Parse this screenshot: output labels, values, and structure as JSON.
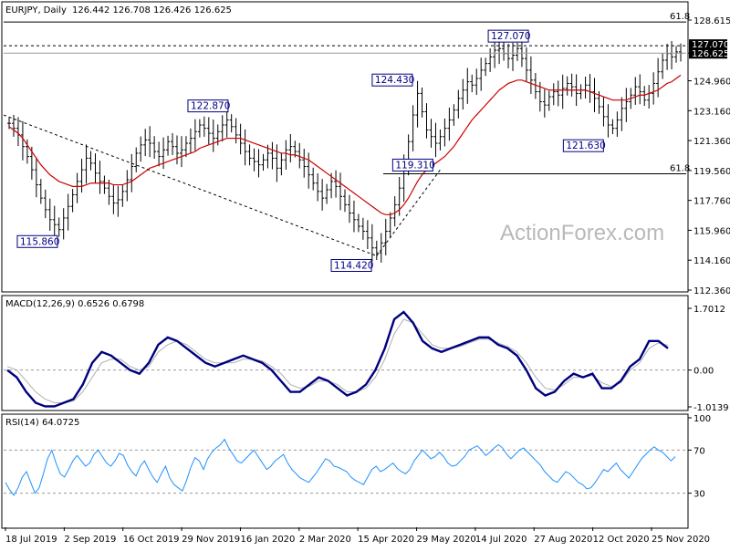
{
  "header": {
    "symbol": "EURJPY",
    "timeframe": "Daily",
    "ohlc": "126.442 126.708 126.426 126.625"
  },
  "watermark": "ActionForex.com",
  "colors": {
    "price_bars": "#000000",
    "ma": "#cc0000",
    "macd_main": "#000080",
    "macd_signal": "#b0b0b0",
    "rsi": "#1e90ff",
    "label": "#000080"
  },
  "chart_data": [
    {
      "type": "line",
      "name_text": "EURJPY, Daily",
      "y_ticks": [
        "128.615",
        "126.625",
        "124.960",
        "123.160",
        "121.360",
        "119.560",
        "117.760",
        "115.960",
        "114.160",
        "112.360"
      ],
      "ylim": [
        112.36,
        128.615
      ],
      "x_ticks": [
        "18 Jul 2019",
        "2 Sep 2019",
        "16 Oct 2019",
        "29 Nov 2019",
        "16 Jan 2020",
        "2 Mar 2020",
        "15 Apr 2020",
        "29 May 2020",
        "14 Jul 2020",
        "27 Aug 2020",
        "12 Oct 2020",
        "25 Nov 2020"
      ],
      "last_price": "126.625",
      "resistance_label": "127.070",
      "fib_levels": [
        {
          "label": "61.8",
          "value": 128.5
        },
        {
          "label": "61.8",
          "value": 119.36
        }
      ],
      "dotted_level": 127.07,
      "callouts": [
        {
          "text": "115.860",
          "value": 115.86
        },
        {
          "text": "122.870",
          "value": 122.87
        },
        {
          "text": "114.420",
          "value": 114.42
        },
        {
          "text": "124.430",
          "value": 124.43
        },
        {
          "text": "119.310",
          "value": 119.31
        },
        {
          "text": "127.070",
          "value": 127.07
        },
        {
          "text": "121.630",
          "value": 121.63
        }
      ],
      "close_series": [
        122.4,
        122.1,
        121.7,
        121.0,
        120.4,
        119.6,
        118.7,
        117.9,
        117.2,
        116.6,
        116.3,
        116.0,
        116.7,
        117.4,
        118.1,
        118.9,
        119.6,
        120.3,
        120.0,
        119.4,
        118.9,
        118.5,
        118.0,
        117.6,
        117.8,
        118.3,
        119.0,
        119.8,
        120.6,
        121.1,
        121.4,
        121.2,
        120.7,
        120.4,
        120.8,
        121.3,
        121.0,
        120.6,
        120.8,
        121.2,
        121.5,
        121.9,
        122.3,
        122.1,
        121.8,
        121.5,
        121.9,
        122.3,
        122.6,
        122.2,
        121.7,
        121.2,
        120.7,
        120.3,
        120.1,
        119.9,
        120.2,
        120.6,
        120.3,
        119.7,
        120.2,
        120.8,
        121.0,
        120.7,
        120.2,
        119.8,
        119.3,
        118.8,
        118.3,
        117.9,
        118.4,
        118.9,
        118.6,
        118.0,
        117.5,
        117.0,
        116.6,
        116.2,
        115.9,
        115.5,
        114.9,
        114.6,
        115.2,
        115.9,
        116.7,
        117.5,
        118.5,
        119.7,
        121.3,
        122.9,
        124.2,
        123.1,
        122.0,
        121.6,
        121.2,
        121.6,
        122.1,
        122.6,
        123.2,
        123.9,
        124.4,
        124.9,
        124.7,
        125.1,
        125.6,
        126.0,
        126.4,
        126.8,
        126.9,
        126.6,
        126.3,
        126.5,
        126.9,
        126.3,
        125.6,
        125.0,
        124.3,
        123.7,
        123.5,
        124.0,
        124.3,
        124.1,
        124.5,
        124.8,
        124.6,
        124.2,
        124.4,
        124.7,
        124.3,
        123.9,
        123.4,
        122.8,
        122.3,
        122.1,
        122.6,
        123.3,
        123.7,
        124.1,
        124.6,
        124.3,
        123.8,
        124.2,
        124.8,
        125.5,
        126.2,
        126.6,
        126.4,
        126.7,
        126.625
      ],
      "ma_series": [
        122.2,
        122.0,
        121.8,
        121.5,
        121.1,
        120.7,
        120.3,
        119.9,
        119.6,
        119.3,
        119.1,
        118.9,
        118.8,
        118.7,
        118.6,
        118.6,
        118.6,
        118.7,
        118.8,
        118.8,
        118.8,
        118.8,
        118.8,
        118.7,
        118.7,
        118.7,
        118.8,
        118.9,
        119.1,
        119.3,
        119.5,
        119.7,
        119.8,
        119.9,
        120.0,
        120.1,
        120.2,
        120.3,
        120.4,
        120.5,
        120.6,
        120.7,
        120.9,
        121.0,
        121.1,
        121.2,
        121.3,
        121.4,
        121.5,
        121.5,
        121.5,
        121.5,
        121.4,
        121.3,
        121.2,
        121.1,
        121.0,
        120.9,
        120.8,
        120.7,
        120.6,
        120.6,
        120.5,
        120.5,
        120.4,
        120.3,
        120.2,
        120.0,
        119.8,
        119.6,
        119.4,
        119.2,
        119.0,
        118.8,
        118.6,
        118.4,
        118.2,
        118.0,
        117.8,
        117.6,
        117.4,
        117.2,
        117.0,
        116.9,
        116.9,
        117.0,
        117.2,
        117.5,
        117.9,
        118.4,
        118.9,
        119.3,
        119.6,
        119.8,
        120.0,
        120.2,
        120.4,
        120.7,
        121.0,
        121.4,
        121.8,
        122.2,
        122.6,
        122.9,
        123.2,
        123.5,
        123.8,
        124.1,
        124.4,
        124.6,
        124.8,
        124.9,
        125.0,
        125.0,
        124.9,
        124.8,
        124.7,
        124.6,
        124.5,
        124.4,
        124.4,
        124.4,
        124.4,
        124.4,
        124.4,
        124.4,
        124.4,
        124.4,
        124.3,
        124.2,
        124.1,
        124.0,
        123.9,
        123.8,
        123.8,
        123.8,
        123.8,
        123.9,
        124.0,
        124.1,
        124.1,
        124.2,
        124.3,
        124.4,
        124.6,
        124.8,
        124.9,
        125.1,
        125.3
      ]
    },
    {
      "type": "line",
      "name_text": "MACD(12,26,9) 0.6526 0.6798",
      "y_ticks": [
        "1.7012",
        "0.00",
        "-1.0139"
      ],
      "ylim": [
        -1.0139,
        1.7012
      ],
      "macd_series": [
        0.0,
        -0.2,
        -0.6,
        -0.9,
        -1.0,
        -1.0,
        -0.9,
        -0.8,
        -0.4,
        0.2,
        0.5,
        0.4,
        0.2,
        0.0,
        -0.1,
        0.2,
        0.7,
        0.9,
        0.8,
        0.6,
        0.4,
        0.2,
        0.1,
        0.2,
        0.3,
        0.4,
        0.3,
        0.2,
        0.0,
        -0.3,
        -0.6,
        -0.6,
        -0.4,
        -0.2,
        -0.3,
        -0.5,
        -0.7,
        -0.6,
        -0.4,
        0.0,
        0.6,
        1.4,
        1.6,
        1.3,
        0.8,
        0.6,
        0.5,
        0.6,
        0.7,
        0.8,
        0.9,
        0.9,
        0.7,
        0.6,
        0.4,
        0.0,
        -0.5,
        -0.7,
        -0.6,
        -0.3,
        -0.1,
        -0.2,
        -0.1,
        -0.5,
        -0.5,
        -0.3,
        0.1,
        0.3,
        0.8,
        0.8,
        0.6
      ],
      "signal_series": [
        0.1,
        0.0,
        -0.3,
        -0.6,
        -0.8,
        -0.9,
        -0.9,
        -0.85,
        -0.6,
        -0.2,
        0.2,
        0.3,
        0.3,
        0.1,
        0.0,
        0.1,
        0.5,
        0.7,
        0.8,
        0.7,
        0.5,
        0.3,
        0.2,
        0.2,
        0.2,
        0.3,
        0.3,
        0.25,
        0.1,
        -0.1,
        -0.4,
        -0.5,
        -0.45,
        -0.3,
        -0.3,
        -0.4,
        -0.6,
        -0.6,
        -0.5,
        -0.2,
        0.3,
        1.0,
        1.4,
        1.3,
        1.0,
        0.7,
        0.6,
        0.6,
        0.65,
        0.75,
        0.85,
        0.85,
        0.75,
        0.65,
        0.5,
        0.2,
        -0.2,
        -0.5,
        -0.55,
        -0.4,
        -0.2,
        -0.2,
        -0.15,
        -0.35,
        -0.45,
        -0.35,
        0.0,
        0.2,
        0.6,
        0.75,
        0.68
      ]
    },
    {
      "type": "line",
      "name_text": "RSI(14) 64.0725",
      "y_ticks": [
        "100",
        "70",
        "30"
      ],
      "ylim": [
        0,
        100
      ],
      "rsi_series": [
        40,
        33,
        28,
        35,
        45,
        50,
        40,
        30,
        35,
        48,
        62,
        70,
        58,
        48,
        45,
        52,
        60,
        65,
        60,
        55,
        58,
        66,
        70,
        64,
        58,
        55,
        60,
        67,
        65,
        56,
        50,
        46,
        55,
        60,
        52,
        45,
        40,
        48,
        55,
        44,
        38,
        35,
        32,
        42,
        54,
        63,
        60,
        52,
        62,
        68,
        72,
        75,
        80,
        72,
        66,
        60,
        58,
        62,
        66,
        70,
        64,
        58,
        52,
        55,
        60,
        63,
        66,
        58,
        52,
        48,
        44,
        42,
        40,
        45,
        50,
        56,
        62,
        60,
        55,
        54,
        52,
        50,
        45,
        42,
        40,
        38,
        45,
        52,
        55,
        50,
        52,
        55,
        58,
        53,
        50,
        48,
        52,
        60,
        65,
        70,
        66,
        62,
        64,
        68,
        64,
        58,
        55,
        56,
        60,
        64,
        70,
        72,
        74,
        70,
        65,
        68,
        72,
        75,
        72,
        66,
        62,
        66,
        70,
        72,
        68,
        64,
        60,
        56,
        50,
        46,
        42,
        40,
        45,
        50,
        48,
        44,
        40,
        38,
        34,
        35,
        40,
        46,
        52,
        50,
        54,
        58,
        52,
        48,
        44,
        50,
        56,
        62,
        66,
        70,
        73,
        70,
        68,
        64,
        60,
        64
      ]
    }
  ]
}
